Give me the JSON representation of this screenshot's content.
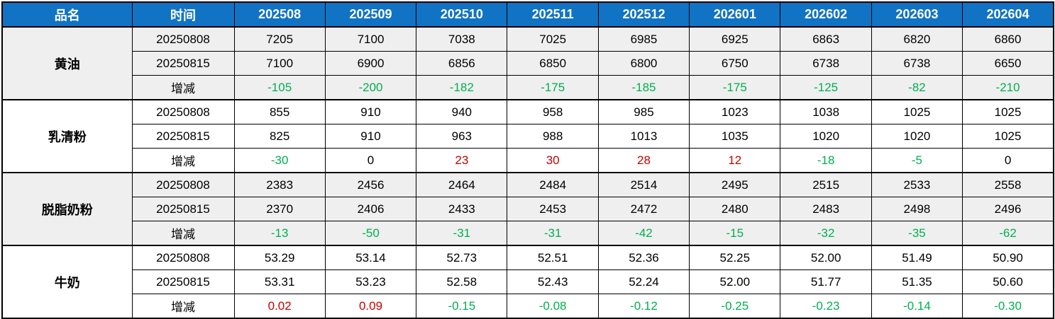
{
  "colors": {
    "header_bg": "#1173C4",
    "header_text": "#FFFFFF",
    "positive": "#C80000",
    "negative": "#00B050",
    "neutral": "#000000",
    "band_gray": "#EFEFEF",
    "band_white": "#FFFFFF",
    "border": "#000000"
  },
  "chart_data": {
    "type": "table",
    "columns": [
      "品名",
      "时间",
      "202508",
      "202509",
      "202510",
      "202511",
      "202512",
      "202601",
      "202602",
      "202603",
      "202604"
    ],
    "change_row_label": "增减",
    "row_groups": [
      {
        "product": "黄油",
        "rows": [
          {
            "label": "20250808",
            "is_change": false,
            "values": [
              "7205",
              "7100",
              "7038",
              "7025",
              "6985",
              "6925",
              "6863",
              "6820",
              "6860"
            ]
          },
          {
            "label": "20250815",
            "is_change": false,
            "values": [
              "7100",
              "6900",
              "6856",
              "6850",
              "6800",
              "6750",
              "6738",
              "6738",
              "6650"
            ]
          },
          {
            "label": "增减",
            "is_change": true,
            "values": [
              "-105",
              "-200",
              "-182",
              "-175",
              "-185",
              "-175",
              "-125",
              "-82",
              "-210"
            ]
          }
        ]
      },
      {
        "product": "乳清粉",
        "rows": [
          {
            "label": "20250808",
            "is_change": false,
            "values": [
              "855",
              "910",
              "940",
              "958",
              "985",
              "1023",
              "1038",
              "1025",
              "1025"
            ]
          },
          {
            "label": "20250815",
            "is_change": false,
            "values": [
              "825",
              "910",
              "963",
              "988",
              "1013",
              "1035",
              "1020",
              "1020",
              "1025"
            ]
          },
          {
            "label": "增减",
            "is_change": true,
            "values": [
              "-30",
              "0",
              "23",
              "30",
              "28",
              "12",
              "-18",
              "-5",
              "0"
            ]
          }
        ]
      },
      {
        "product": "脱脂奶粉",
        "rows": [
          {
            "label": "20250808",
            "is_change": false,
            "values": [
              "2383",
              "2456",
              "2464",
              "2484",
              "2514",
              "2495",
              "2515",
              "2533",
              "2558"
            ]
          },
          {
            "label": "20250815",
            "is_change": false,
            "values": [
              "2370",
              "2406",
              "2433",
              "2453",
              "2472",
              "2480",
              "2483",
              "2498",
              "2496"
            ]
          },
          {
            "label": "增减",
            "is_change": true,
            "values": [
              "-13",
              "-50",
              "-31",
              "-31",
              "-42",
              "-15",
              "-32",
              "-35",
              "-62"
            ]
          }
        ]
      },
      {
        "product": "牛奶",
        "rows": [
          {
            "label": "20250808",
            "is_change": false,
            "values": [
              "53.29",
              "53.14",
              "52.73",
              "52.51",
              "52.36",
              "52.25",
              "52.00",
              "51.49",
              "50.90"
            ]
          },
          {
            "label": "20250815",
            "is_change": false,
            "values": [
              "53.31",
              "53.23",
              "52.58",
              "52.43",
              "52.24",
              "52.00",
              "51.77",
              "51.35",
              "50.60"
            ]
          },
          {
            "label": "增减",
            "is_change": true,
            "values": [
              "0.02",
              "0.09",
              "-0.15",
              "-0.08",
              "-0.12",
              "-0.25",
              "-0.23",
              "-0.14",
              "-0.30"
            ]
          }
        ]
      }
    ]
  }
}
